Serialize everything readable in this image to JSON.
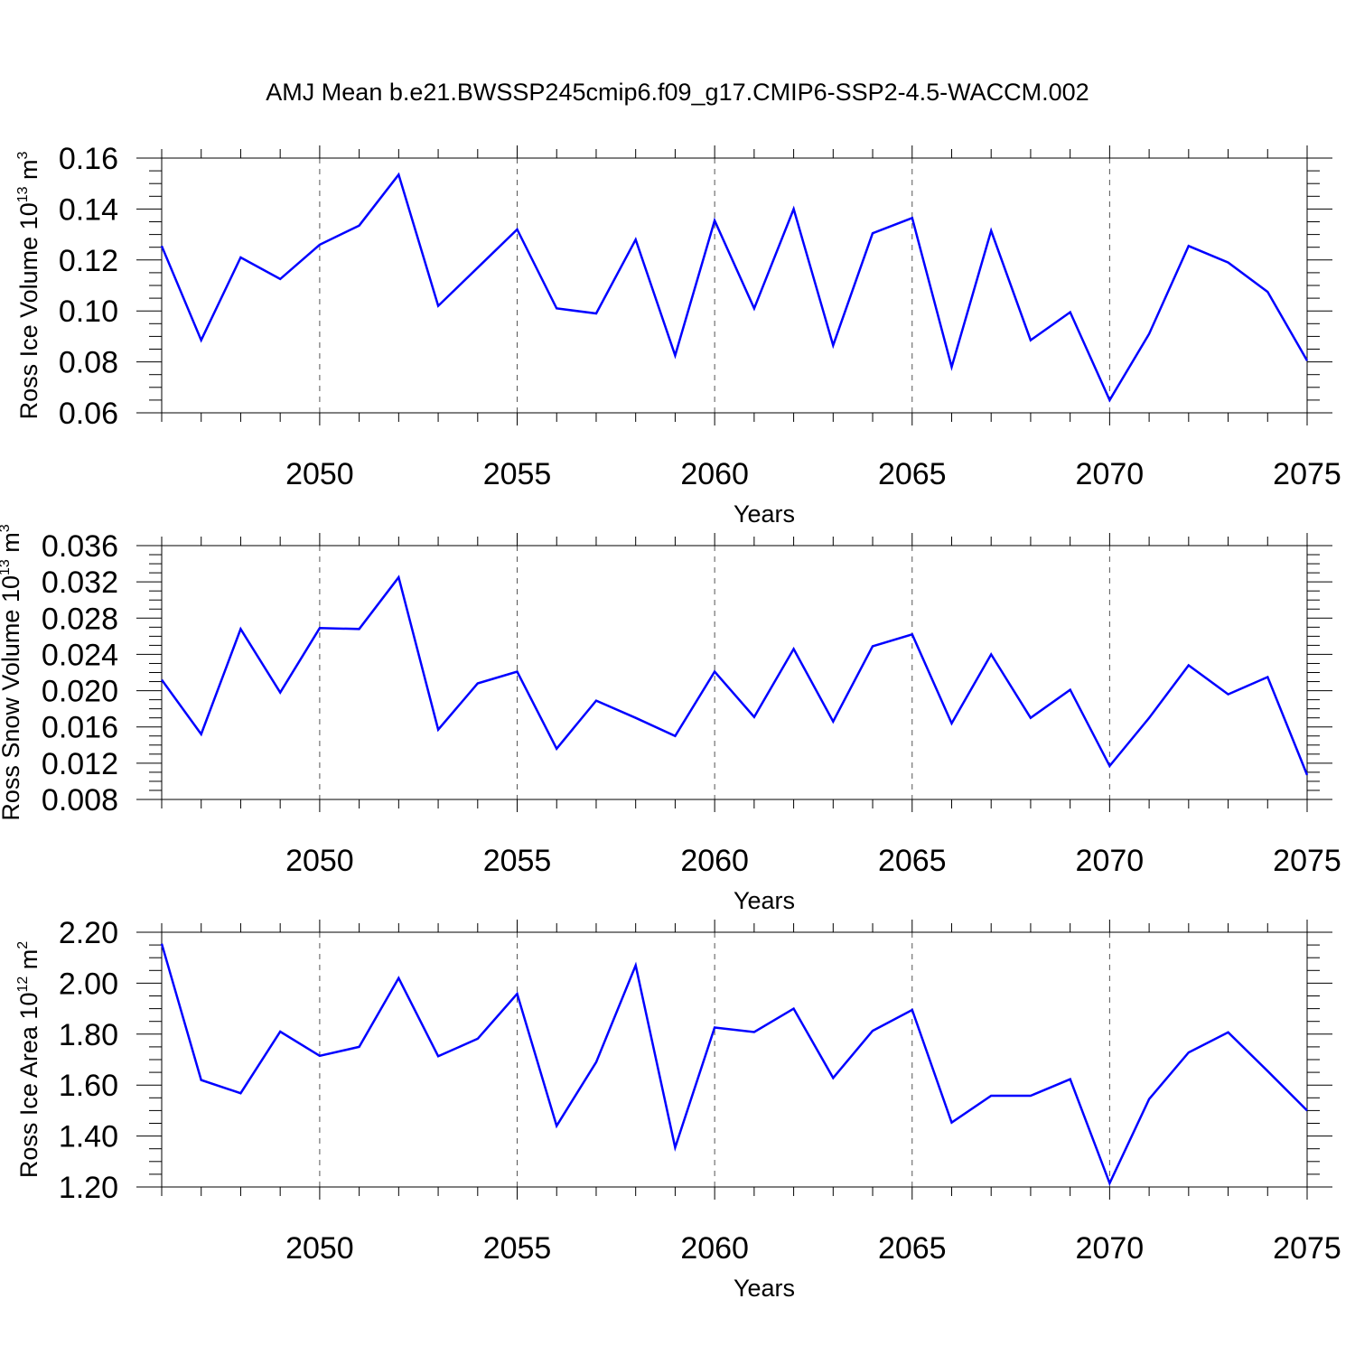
{
  "chart_data": {
    "title": "AMJ Mean b.e21.BWSSP245cmip6.f09_g17.CMIP6-SSP2-4.5-WACCM.002",
    "panels": [
      {
        "type": "line",
        "ylabel": {
          "base": "Ross Ice Volume 10",
          "exp": "13",
          "unit": " m",
          "unit_exp": "3"
        },
        "xlabel": "Years",
        "xlim": [
          2046,
          2075
        ],
        "ylim": [
          0.06,
          0.16
        ],
        "yticks": [
          "0.06",
          "0.08",
          "0.10",
          "0.12",
          "0.14",
          "0.16"
        ],
        "ytick_values": [
          0.06,
          0.08,
          0.1,
          0.12,
          0.14,
          0.16
        ],
        "y_minor_step": 0.005,
        "xticks": [
          "2050",
          "2055",
          "2060",
          "2065",
          "2070",
          "2075"
        ],
        "xtick_values": [
          2050,
          2055,
          2060,
          2065,
          2070,
          2075
        ],
        "grid_x": true,
        "series": [
          {
            "name": "Ross Ice Volume",
            "color": "#0000ff",
            "x": [
              2046,
              2047,
              2048,
              2049,
              2050,
              2051,
              2052,
              2053,
              2054,
              2055,
              2056,
              2057,
              2058,
              2059,
              2060,
              2061,
              2062,
              2063,
              2064,
              2065,
              2066,
              2067,
              2068,
              2069,
              2070,
              2071,
              2072,
              2073,
              2074,
              2075
            ],
            "values": [
              0.1255,
              0.0885,
              0.121,
              0.1125,
              0.126,
              0.1335,
              0.1535,
              0.102,
              0.117,
              0.132,
              0.101,
              0.099,
              0.128,
              0.0825,
              0.1355,
              0.101,
              0.14,
              0.0865,
              0.1305,
              0.1365,
              0.078,
              0.1315,
              0.0885,
              0.0995,
              0.065,
              0.091,
              0.1255,
              0.119,
              0.1075,
              0.0805
            ]
          }
        ]
      },
      {
        "type": "line",
        "ylabel": {
          "base": "Ross Snow Volume 10",
          "exp": "13",
          "unit": " m",
          "unit_exp": "3"
        },
        "xlabel": "Years",
        "xlim": [
          2046,
          2075
        ],
        "ylim": [
          0.008,
          0.036
        ],
        "yticks": [
          "0.008",
          "0.012",
          "0.016",
          "0.020",
          "0.024",
          "0.028",
          "0.032",
          "0.036"
        ],
        "ytick_values": [
          0.008,
          0.012,
          0.016,
          0.02,
          0.024,
          0.028,
          0.032,
          0.036
        ],
        "y_minor_step": 0.001,
        "xticks": [
          "2050",
          "2055",
          "2060",
          "2065",
          "2070",
          "2075"
        ],
        "xtick_values": [
          2050,
          2055,
          2060,
          2065,
          2070,
          2075
        ],
        "grid_x": true,
        "series": [
          {
            "name": "Ross Snow Volume",
            "color": "#0000ff",
            "x": [
              2046,
              2047,
              2048,
              2049,
              2050,
              2051,
              2052,
              2053,
              2054,
              2055,
              2056,
              2057,
              2058,
              2059,
              2060,
              2061,
              2062,
              2063,
              2064,
              2065,
              2066,
              2067,
              2068,
              2069,
              2070,
              2071,
              2072,
              2073,
              2074,
              2075
            ],
            "values": [
              0.0212,
              0.0152,
              0.0268,
              0.0198,
              0.0269,
              0.0268,
              0.0325,
              0.0157,
              0.0208,
              0.0221,
              0.0136,
              0.0189,
              0.017,
              0.015,
              0.0221,
              0.0171,
              0.0246,
              0.0166,
              0.0249,
              0.0262,
              0.0164,
              0.024,
              0.017,
              0.0201,
              0.0117,
              0.017,
              0.0228,
              0.0196,
              0.0215,
              0.0107
            ]
          }
        ]
      },
      {
        "type": "line",
        "ylabel": {
          "base": "Ross Ice Area 10",
          "exp": "12",
          "unit": " m",
          "unit_exp": "2"
        },
        "xlabel": "Years",
        "xlim": [
          2046,
          2075
        ],
        "ylim": [
          1.2,
          2.2
        ],
        "yticks": [
          "1.20",
          "1.40",
          "1.60",
          "1.80",
          "2.00",
          "2.20"
        ],
        "ytick_values": [
          1.2,
          1.4,
          1.6,
          1.8,
          2.0,
          2.2
        ],
        "y_minor_step": 0.05,
        "xticks": [
          "2050",
          "2055",
          "2060",
          "2065",
          "2070",
          "2075"
        ],
        "xtick_values": [
          2050,
          2055,
          2060,
          2065,
          2070,
          2075
        ],
        "grid_x": true,
        "series": [
          {
            "name": "Ross Ice Area",
            "color": "#0000ff",
            "x": [
              2046,
              2047,
              2048,
              2049,
              2050,
              2051,
              2052,
              2053,
              2054,
              2055,
              2056,
              2057,
              2058,
              2059,
              2060,
              2061,
              2062,
              2063,
              2064,
              2065,
              2066,
              2067,
              2068,
              2069,
              2070,
              2071,
              2072,
              2073,
              2074,
              2075
            ],
            "values": [
              2.155,
              1.62,
              1.568,
              1.81,
              1.715,
              1.75,
              2.02,
              1.713,
              1.782,
              1.958,
              1.44,
              1.69,
              2.07,
              1.355,
              1.826,
              1.808,
              1.9,
              1.628,
              1.813,
              1.895,
              1.453,
              1.558,
              1.558,
              1.623,
              1.215,
              1.545,
              1.728,
              1.807,
              1.655,
              1.5
            ]
          }
        ]
      }
    ]
  }
}
